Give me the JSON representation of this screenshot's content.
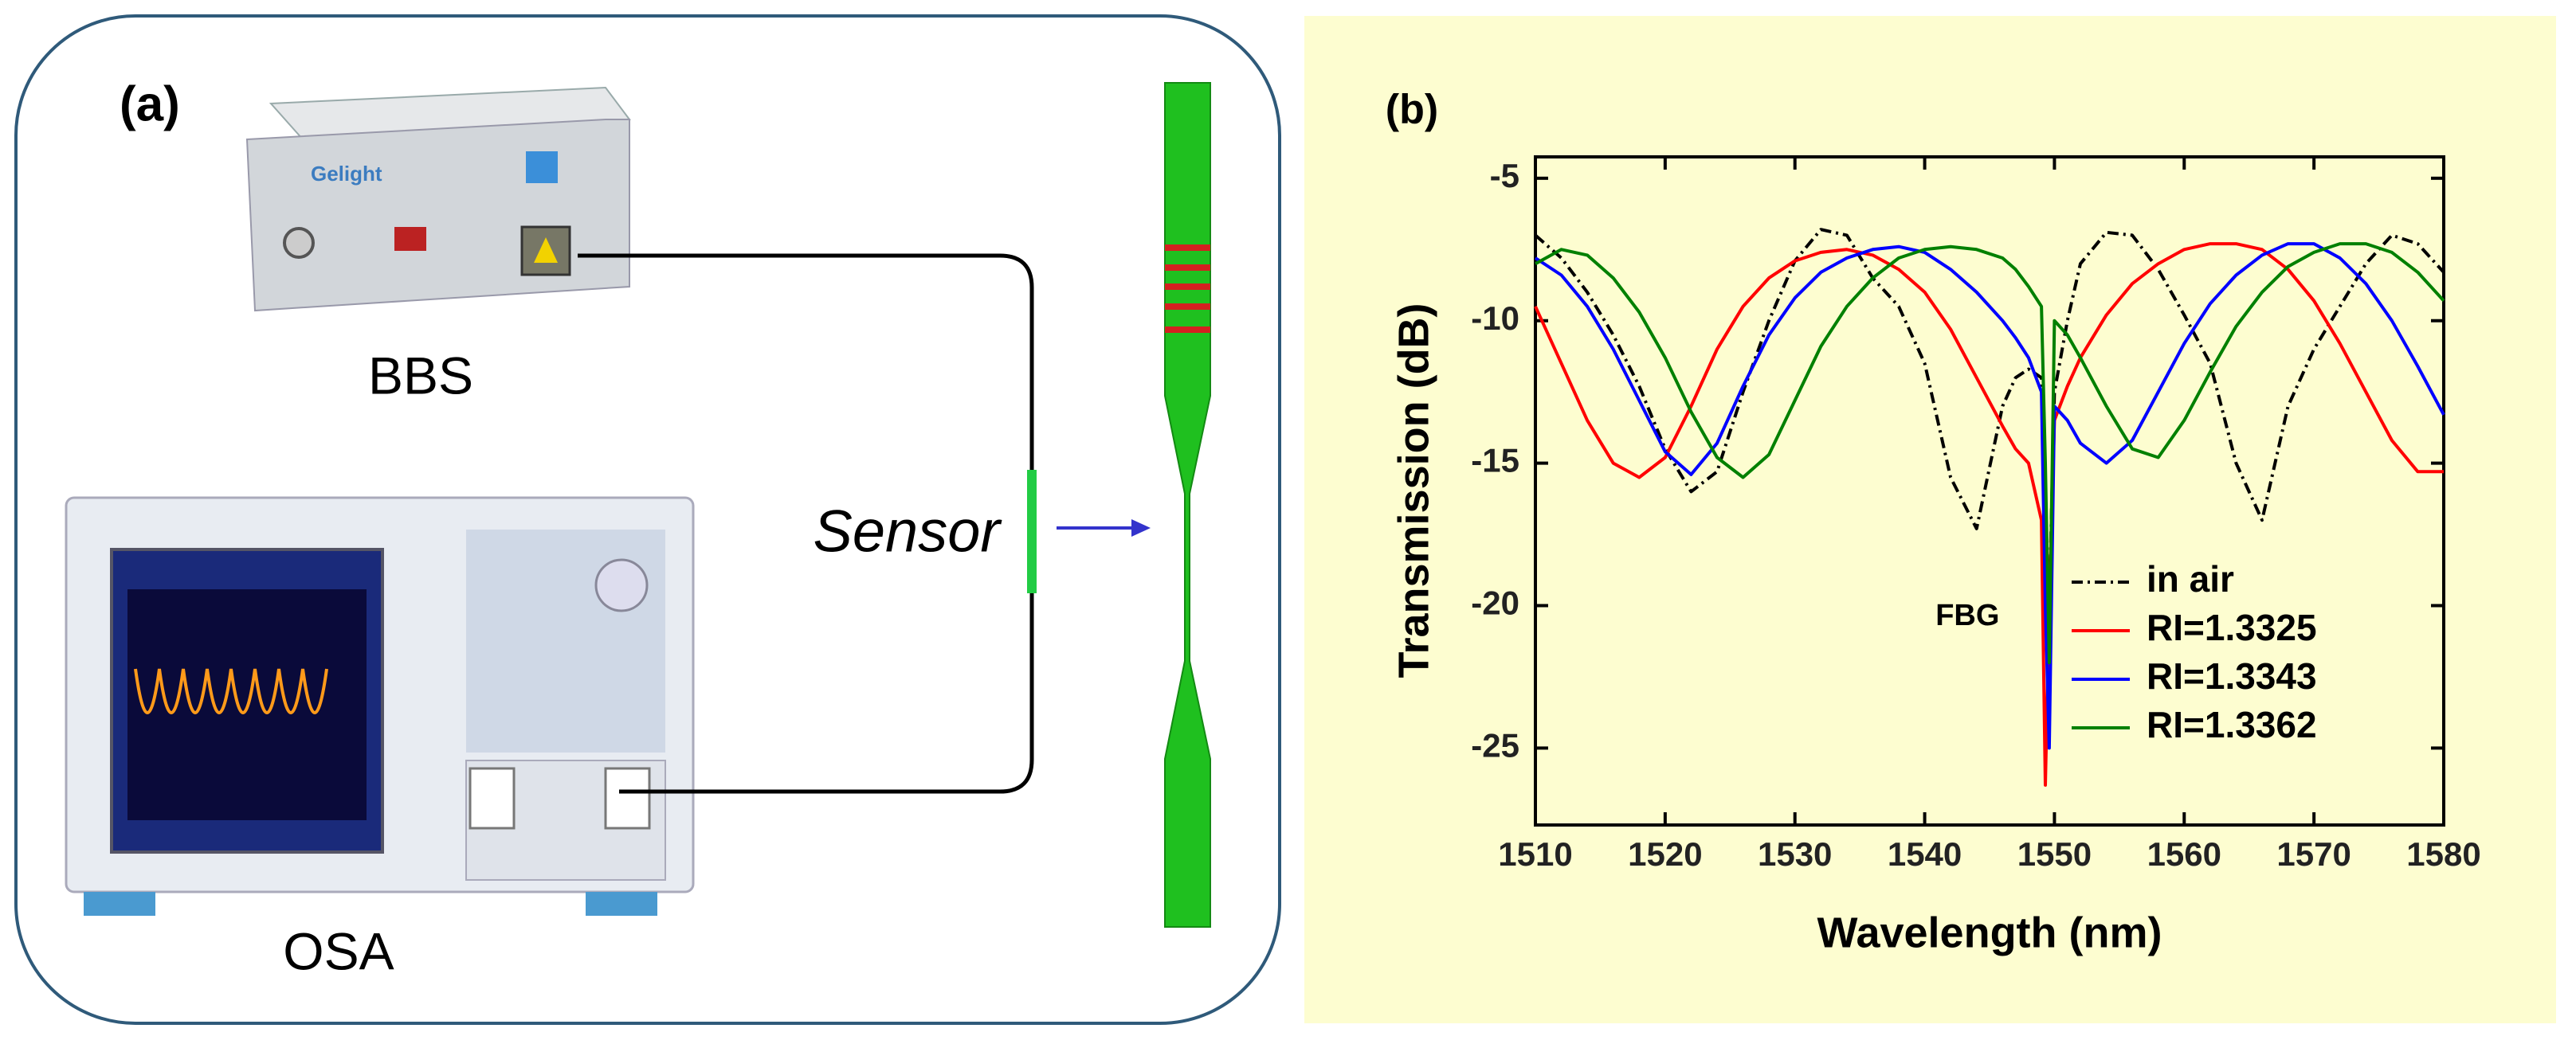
{
  "diagram": {
    "panel_label": "(a)",
    "source_label": "BBS",
    "analyzer_label": "OSA",
    "sensor_label": "Sensor",
    "brand": "Gelight"
  },
  "chart_data": {
    "type": "line",
    "panel_label": "(b)",
    "xlabel": "Wavelength (nm)",
    "ylabel": "Transmission (dB)",
    "xlim": [
      1510,
      1580
    ],
    "xticks": [
      1510,
      1520,
      1530,
      1540,
      1550,
      1560,
      1570,
      1580
    ],
    "ylim": [
      -27.7,
      -4.25
    ],
    "yticks": [
      -5,
      -10,
      -15,
      -20,
      -25
    ],
    "legend": "lower right",
    "annotations": [
      {
        "text": "FBG",
        "x": 1543.3,
        "y": -20.4
      }
    ],
    "x": [
      1510,
      1512,
      1514,
      1516,
      1518,
      1520,
      1522,
      1524,
      1526,
      1528,
      1530,
      1532,
      1534,
      1536,
      1538,
      1540,
      1542,
      1544,
      1546,
      1547,
      1548,
      1549,
      1549.3,
      1549.6,
      1550,
      1551,
      1552,
      1554,
      1556,
      1558,
      1560,
      1562,
      1564,
      1566,
      1568,
      1570,
      1572,
      1574,
      1576,
      1578,
      1580
    ],
    "series": [
      {
        "name": "in air",
        "color": "#000000",
        "linestyle": "dashdot",
        "values": [
          -7,
          -7.8,
          -9,
          -10.5,
          -12.3,
          -14.5,
          -16,
          -15.3,
          -12.5,
          -10,
          -7.9,
          -6.8,
          -7,
          -8.5,
          -9.5,
          -11.5,
          -15.5,
          -17.3,
          -13,
          -12,
          -11.7,
          -12,
          -17,
          -20,
          -12.5,
          -10,
          -8,
          -6.9,
          -7,
          -8.2,
          -9.8,
          -11.5,
          -15,
          -17,
          -13,
          -11,
          -9.5,
          -8,
          -7,
          -7.3,
          -8.3
        ]
      },
      {
        "name": "RI=1.3325",
        "color": "#ff0000",
        "linestyle": "solid",
        "values": [
          -9.5,
          -11.5,
          -13.5,
          -15,
          -15.5,
          -14.8,
          -13,
          -11,
          -9.5,
          -8.5,
          -7.9,
          -7.6,
          -7.5,
          -7.7,
          -8.2,
          -9,
          -10.3,
          -12,
          -13.7,
          -14.5,
          -15,
          -17,
          -26.3,
          -20,
          -13.5,
          -12.3,
          -11.3,
          -9.8,
          -8.7,
          -8,
          -7.5,
          -7.3,
          -7.3,
          -7.5,
          -8.2,
          -9.3,
          -10.8,
          -12.5,
          -14.2,
          -15.3,
          -15.3
        ]
      },
      {
        "name": "RI=1.3343",
        "color": "#0000ff",
        "linestyle": "solid",
        "values": [
          -7.8,
          -8.4,
          -9.5,
          -11,
          -12.8,
          -14.6,
          -15.4,
          -14.3,
          -12.3,
          -10.5,
          -9.2,
          -8.3,
          -7.8,
          -7.5,
          -7.4,
          -7.6,
          -8.2,
          -9,
          -10,
          -10.6,
          -11.3,
          -12.5,
          -20,
          -25,
          -13,
          -13.5,
          -14.3,
          -15,
          -14.2,
          -12.5,
          -10.8,
          -9.4,
          -8.4,
          -7.7,
          -7.3,
          -7.3,
          -7.8,
          -8.7,
          -10,
          -11.6,
          -13.3
        ]
      },
      {
        "name": "RI=1.3362",
        "color": "#008000",
        "linestyle": "solid",
        "values": [
          -8,
          -7.5,
          -7.7,
          -8.5,
          -9.7,
          -11.3,
          -13.2,
          -14.8,
          -15.5,
          -14.7,
          -12.8,
          -10.9,
          -9.5,
          -8.5,
          -7.8,
          -7.5,
          -7.4,
          -7.5,
          -7.8,
          -8.2,
          -8.8,
          -9.5,
          -15,
          -22,
          -10,
          -10.5,
          -11.3,
          -13,
          -14.5,
          -14.8,
          -13.5,
          -11.8,
          -10.2,
          -9,
          -8.1,
          -7.6,
          -7.3,
          -7.3,
          -7.6,
          -8.3,
          -9.3
        ]
      }
    ]
  }
}
